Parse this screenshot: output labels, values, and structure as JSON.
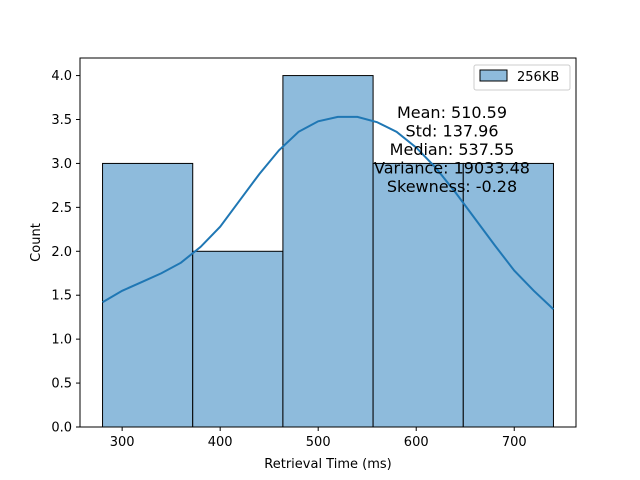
{
  "chart_data": {
    "type": "bar",
    "subtype": "histogram",
    "title": "",
    "xlabel": "Retrieval Time (ms)",
    "ylabel": "Count",
    "xlim": [
      257,
      763
    ],
    "ylim": [
      0,
      4.2
    ],
    "x_ticks": [
      300,
      400,
      500,
      600,
      700
    ],
    "y_ticks": [
      0.0,
      0.5,
      1.0,
      1.5,
      2.0,
      2.5,
      3.0,
      3.5,
      4.0
    ],
    "bins": [
      {
        "start": 280.0,
        "end": 372.0,
        "count": 3
      },
      {
        "start": 372.0,
        "end": 464.0,
        "count": 2
      },
      {
        "start": 464.0,
        "end": 556.0,
        "count": 4
      },
      {
        "start": 556.0,
        "end": 648.0,
        "count": 3
      },
      {
        "start": 648.0,
        "end": 740.0,
        "count": 3
      }
    ],
    "kde": {
      "x": [
        280,
        300,
        320,
        340,
        360,
        380,
        400,
        420,
        440,
        460,
        480,
        500,
        520,
        540,
        560,
        580,
        600,
        620,
        640,
        660,
        680,
        700,
        720,
        740
      ],
      "y": [
        1.42,
        1.55,
        1.65,
        1.75,
        1.87,
        2.05,
        2.28,
        2.58,
        2.88,
        3.15,
        3.36,
        3.48,
        3.53,
        3.53,
        3.47,
        3.36,
        3.18,
        2.95,
        2.67,
        2.37,
        2.07,
        1.78,
        1.55,
        1.34
      ]
    },
    "series": [
      {
        "name": "256KB",
        "color": "#1f77b4",
        "bar_fill": "#8ebbdc"
      }
    ],
    "legend": {
      "position": "top-right",
      "label": "256KB"
    },
    "grid": false,
    "annotation": {
      "position": "upper-right",
      "lines": [
        "Mean: 510.59",
        "Std: 137.96",
        "Median: 537.55",
        "Variance: 19033.48",
        "Skewness: -0.28"
      ]
    }
  }
}
